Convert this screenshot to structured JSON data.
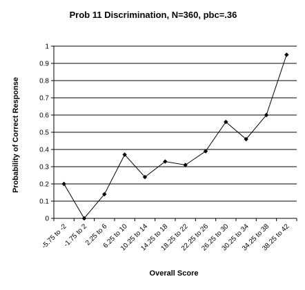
{
  "chart_data": {
    "type": "line",
    "title": "Prob 11 Discrimination, N=360, pbc=.36",
    "xlabel": "Overall Score",
    "ylabel": "Probability of Correct Response",
    "categories": [
      "-5.75 to -2",
      "-1.75 to 2",
      "2.25 to 6",
      "6.25 to 10",
      "10.25 to 14",
      "14.25 to 18",
      "18.25 to 22",
      "22.25 to 26",
      "26.25 to 30",
      "30.25 to 34",
      "34.25 to 38",
      "38.25 to 42"
    ],
    "values": [
      0.2,
      0.0,
      0.14,
      0.37,
      0.24,
      0.33,
      0.31,
      0.39,
      0.56,
      0.46,
      0.6,
      0.95
    ],
    "ylim": [
      0,
      1
    ],
    "yticks": [
      "0",
      "0.1",
      "0.2",
      "0.3",
      "0.4",
      "0.5",
      "0.6",
      "0.7",
      "0.8",
      "0.9",
      "1"
    ],
    "grid": true,
    "legend": "none",
    "line_color": "#000000",
    "marker": "diamond"
  }
}
